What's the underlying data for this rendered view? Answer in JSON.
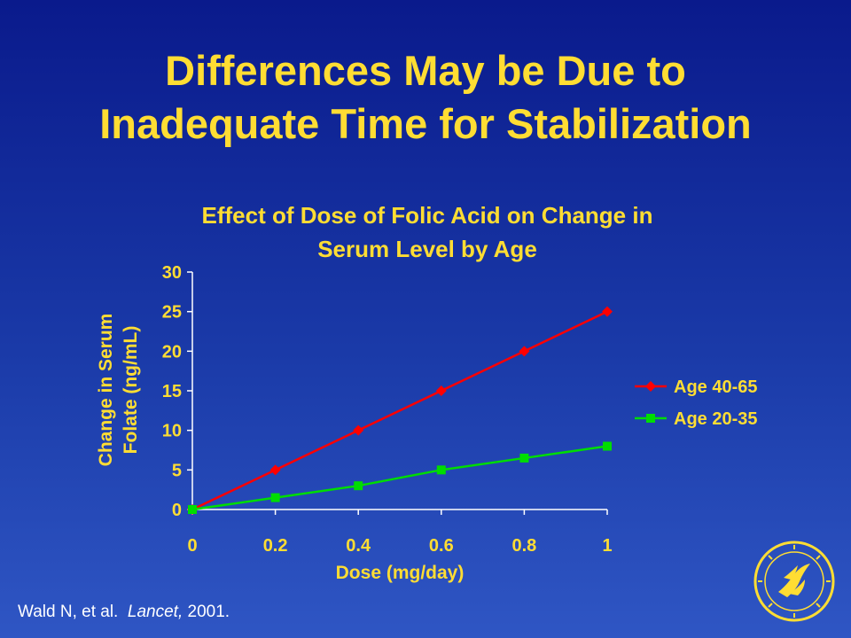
{
  "slide": {
    "title_line1": "Differences May be Due to",
    "title_line2": "Inadequate Time for Stabilization"
  },
  "chart_data": {
    "type": "line",
    "title_line1": "Effect of Dose of Folic Acid on Change in",
    "title_line2": "Serum Level by Age",
    "xlabel": "Dose (mg/day)",
    "ylabel_line1": "Change in Serum",
    "ylabel_line2": "Folate (ng/mL)",
    "x": [
      0,
      0.2,
      0.4,
      0.6,
      0.8,
      1
    ],
    "xlim": [
      0,
      1
    ],
    "ylim": [
      0,
      30
    ],
    "yticks": [
      0,
      5,
      10,
      15,
      20,
      25,
      30
    ],
    "grid": false,
    "legend": "right",
    "series": [
      {
        "name": "Age 40-65",
        "color": "#ff0000",
        "marker": "diamond",
        "values": [
          0,
          5,
          10,
          15,
          20,
          25
        ]
      },
      {
        "name": "Age 20-35",
        "color": "#00dd00",
        "marker": "square",
        "values": [
          0,
          1.5,
          3,
          5,
          6.5,
          8
        ]
      }
    ]
  },
  "citation": {
    "authors": "Wald N, et al.",
    "journal": "Lancet,",
    "year": "2001."
  },
  "colors": {
    "title": "#ffdd33",
    "axis": "#ffffff",
    "text": "#ffffff"
  },
  "icons": {
    "seal": "hhs-seal-icon"
  }
}
